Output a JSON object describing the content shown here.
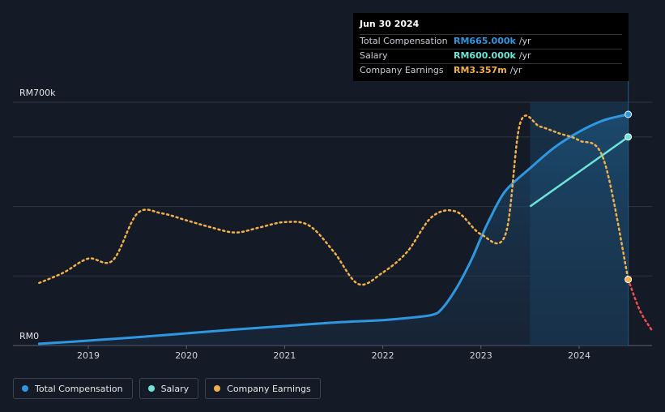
{
  "chart_data": {
    "type": "line",
    "title": "",
    "xlabel": "",
    "ylabel": "",
    "ylim": [
      0,
      700
    ],
    "y_unit": "k RM",
    "y_axis_labels": {
      "top": "RM700k",
      "bottom": "RM0"
    },
    "x_ticks": [
      "2019",
      "2020",
      "2021",
      "2022",
      "2023",
      "2024"
    ],
    "x_range": [
      2018.5,
      2024.75
    ],
    "highlight_region": [
      2023.5,
      2024.5
    ],
    "series": [
      {
        "name": "Total Compensation",
        "color": "#2f96e0",
        "points": [
          [
            2018.5,
            5
          ],
          [
            2019.0,
            14
          ],
          [
            2019.5,
            24
          ],
          [
            2020.0,
            35
          ],
          [
            2020.5,
            46
          ],
          [
            2021.0,
            56
          ],
          [
            2021.5,
            66
          ],
          [
            2022.0,
            73
          ],
          [
            2022.25,
            79
          ],
          [
            2022.5,
            88
          ],
          [
            2022.6,
            105
          ],
          [
            2022.75,
            165
          ],
          [
            2022.9,
            245
          ],
          [
            2023.0,
            310
          ],
          [
            2023.1,
            370
          ],
          [
            2023.25,
            445
          ],
          [
            2023.5,
            510
          ],
          [
            2023.75,
            570
          ],
          [
            2024.0,
            615
          ],
          [
            2024.25,
            648
          ],
          [
            2024.5,
            665
          ]
        ]
      },
      {
        "name": "Salary",
        "color": "#6ee3d8",
        "points": [
          [
            2023.5,
            400
          ],
          [
            2024.5,
            600
          ]
        ]
      },
      {
        "name": "Company Earnings",
        "color": "#f0b04a",
        "forecast_color": "#ef4e4e",
        "points": [
          [
            2018.5,
            180
          ],
          [
            2018.75,
            210
          ],
          [
            2019.0,
            250
          ],
          [
            2019.25,
            245
          ],
          [
            2019.5,
            380
          ],
          [
            2019.75,
            380
          ],
          [
            2020.0,
            360
          ],
          [
            2020.25,
            340
          ],
          [
            2020.5,
            325
          ],
          [
            2020.75,
            340
          ],
          [
            2021.0,
            355
          ],
          [
            2021.25,
            345
          ],
          [
            2021.5,
            270
          ],
          [
            2021.75,
            177
          ],
          [
            2022.0,
            210
          ],
          [
            2022.25,
            270
          ],
          [
            2022.5,
            370
          ],
          [
            2022.75,
            385
          ],
          [
            2023.0,
            320
          ],
          [
            2023.25,
            320
          ],
          [
            2023.4,
            640
          ],
          [
            2023.6,
            630
          ],
          [
            2023.8,
            610
          ],
          [
            2024.0,
            590
          ],
          [
            2024.25,
            535
          ],
          [
            2024.5,
            190
          ]
        ],
        "forecast_points": [
          [
            2024.5,
            190
          ],
          [
            2024.62,
            100
          ],
          [
            2024.75,
            40
          ]
        ]
      }
    ]
  },
  "tooltip": {
    "date": "Jun 30 2024",
    "rows": [
      {
        "label": "Total Compensation",
        "value": "RM665.000k",
        "unit": "/yr",
        "color": "#2f96e0"
      },
      {
        "label": "Salary",
        "value": "RM600.000k",
        "unit": "/yr",
        "color": "#6ee3d8"
      },
      {
        "label": "Company Earnings",
        "value": "RM3.357m",
        "unit": "/yr",
        "color": "#f0b04a"
      }
    ]
  },
  "legend": [
    {
      "label": "Total Compensation",
      "color": "#2f96e0"
    },
    {
      "label": "Salary",
      "color": "#6ee3d8"
    },
    {
      "label": "Company Earnings",
      "color": "#f0b04a"
    }
  ]
}
